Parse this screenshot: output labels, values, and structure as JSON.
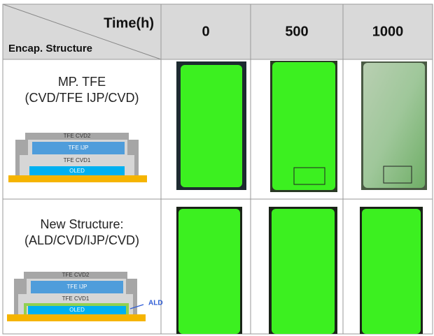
{
  "header": {
    "time_label": "Time(h)",
    "structure_label": "Encap. Structure",
    "columns": [
      "0",
      "500",
      "1000"
    ]
  },
  "rows": [
    {
      "name": "MP. TFE",
      "layers": "(CVD/TFE IJP/CVD)",
      "diagram": [
        "TFE CVD2",
        "TFE IJP",
        "TFE CVD1",
        "OLED"
      ]
    },
    {
      "name": "New Structure:",
      "layers": "(ALD/CVD/IJP/CVD)",
      "diagram": [
        "TFE CVD2",
        "TFE IJP",
        "TFE CVD1",
        "OLED"
      ],
      "callout": "ALD"
    }
  ]
}
